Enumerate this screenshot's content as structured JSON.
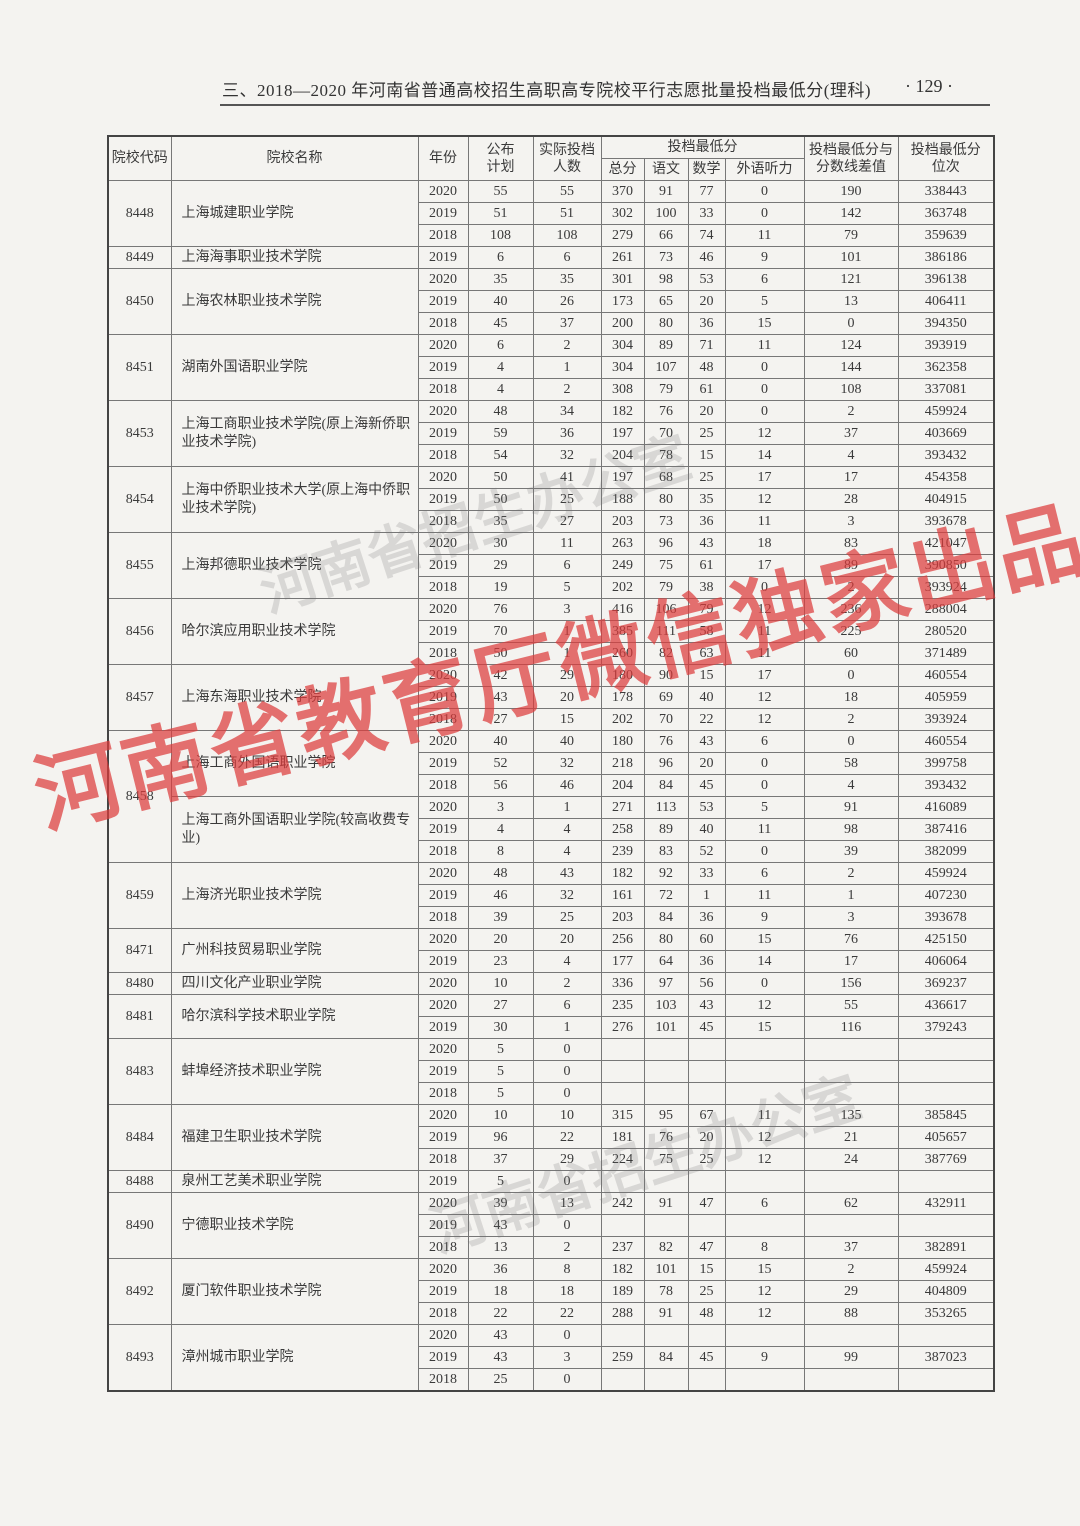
{
  "header": {
    "title": "三、2018—2020 年河南省普通高校招生高职高专院校平行志愿批量投档最低分(理科)",
    "page_number": "· 129 ·"
  },
  "table": {
    "headers": {
      "code": "院校代码",
      "name": "院校名称",
      "year": "年份",
      "plan": "公布计划",
      "actual": "实际投档人数",
      "min_score_group": "投档最低分",
      "total": "总分",
      "chinese": "语文",
      "math": "数学",
      "listening": "外语听力",
      "diff": "投档最低分与分数线差值",
      "rank": "投档最低分位次"
    },
    "schools": [
      {
        "code": "8448",
        "programs": [
          {
            "name": "上海城建职业学院",
            "rows": [
              [
                "2020",
                "55",
                "55",
                "370",
                "91",
                "77",
                "0",
                "190",
                "338443"
              ],
              [
                "2019",
                "51",
                "51",
                "302",
                "100",
                "33",
                "0",
                "142",
                "363748"
              ],
              [
                "2018",
                "108",
                "108",
                "279",
                "66",
                "74",
                "11",
                "79",
                "359639"
              ]
            ]
          }
        ]
      },
      {
        "code": "8449",
        "programs": [
          {
            "name": "上海海事职业技术学院",
            "rows": [
              [
                "2019",
                "6",
                "6",
                "261",
                "73",
                "46",
                "9",
                "101",
                "386186"
              ]
            ]
          }
        ]
      },
      {
        "code": "8450",
        "programs": [
          {
            "name": "上海农林职业技术学院",
            "rows": [
              [
                "2020",
                "35",
                "35",
                "301",
                "98",
                "53",
                "6",
                "121",
                "396138"
              ],
              [
                "2019",
                "40",
                "26",
                "173",
                "65",
                "20",
                "5",
                "13",
                "406411"
              ],
              [
                "2018",
                "45",
                "37",
                "200",
                "80",
                "36",
                "15",
                "0",
                "394350"
              ]
            ]
          }
        ]
      },
      {
        "code": "8451",
        "programs": [
          {
            "name": "湖南外国语职业学院",
            "rows": [
              [
                "2020",
                "6",
                "2",
                "304",
                "89",
                "71",
                "11",
                "124",
                "393919"
              ],
              [
                "2019",
                "4",
                "1",
                "304",
                "107",
                "48",
                "0",
                "144",
                "362358"
              ],
              [
                "2018",
                "4",
                "2",
                "308",
                "79",
                "61",
                "0",
                "108",
                "337081"
              ]
            ]
          }
        ]
      },
      {
        "code": "8453",
        "programs": [
          {
            "name": "上海工商职业技术学院(原上海新侨职业技术学院)",
            "rows": [
              [
                "2020",
                "48",
                "34",
                "182",
                "76",
                "20",
                "0",
                "2",
                "459924"
              ],
              [
                "2019",
                "59",
                "36",
                "197",
                "70",
                "25",
                "12",
                "37",
                "403669"
              ],
              [
                "2018",
                "54",
                "32",
                "204",
                "78",
                "15",
                "14",
                "4",
                "393432"
              ]
            ]
          }
        ]
      },
      {
        "code": "8454",
        "programs": [
          {
            "name": "上海中侨职业技术大学(原上海中侨职业技术学院)",
            "rows": [
              [
                "2020",
                "50",
                "41",
                "197",
                "68",
                "25",
                "17",
                "17",
                "454358"
              ],
              [
                "2019",
                "50",
                "25",
                "188",
                "80",
                "35",
                "12",
                "28",
                "404915"
              ],
              [
                "2018",
                "35",
                "27",
                "203",
                "73",
                "36",
                "11",
                "3",
                "393678"
              ]
            ]
          }
        ]
      },
      {
        "code": "8455",
        "programs": [
          {
            "name": "上海邦德职业技术学院",
            "rows": [
              [
                "2020",
                "30",
                "11",
                "263",
                "96",
                "43",
                "18",
                "83",
                "421047"
              ],
              [
                "2019",
                "29",
                "6",
                "249",
                "75",
                "61",
                "17",
                "89",
                "390850"
              ],
              [
                "2018",
                "19",
                "5",
                "202",
                "79",
                "38",
                "0",
                "2",
                "393924"
              ]
            ]
          }
        ]
      },
      {
        "code": "8456",
        "programs": [
          {
            "name": "哈尔滨应用职业技术学院",
            "rows": [
              [
                "2020",
                "76",
                "3",
                "416",
                "106",
                "79",
                "12",
                "236",
                "288004"
              ],
              [
                "2019",
                "70",
                "1",
                "385",
                "111",
                "58",
                "11",
                "225",
                "280520"
              ],
              [
                "2018",
                "50",
                "1",
                "260",
                "82",
                "63",
                "11",
                "60",
                "371489"
              ]
            ]
          }
        ]
      },
      {
        "code": "8457",
        "programs": [
          {
            "name": "上海东海职业技术学院",
            "rows": [
              [
                "2020",
                "42",
                "29",
                "180",
                "90",
                "15",
                "17",
                "0",
                "460554"
              ],
              [
                "2019",
                "43",
                "20",
                "178",
                "69",
                "40",
                "12",
                "18",
                "405959"
              ],
              [
                "2018",
                "27",
                "15",
                "202",
                "70",
                "22",
                "12",
                "2",
                "393924"
              ]
            ]
          }
        ]
      },
      {
        "code": "8458",
        "programs": [
          {
            "name": "上海工商外国语职业学院",
            "rows": [
              [
                "2020",
                "40",
                "40",
                "180",
                "76",
                "43",
                "6",
                "0",
                "460554"
              ],
              [
                "2019",
                "52",
                "32",
                "218",
                "96",
                "20",
                "0",
                "58",
                "399758"
              ],
              [
                "2018",
                "56",
                "46",
                "204",
                "84",
                "45",
                "0",
                "4",
                "393432"
              ]
            ]
          },
          {
            "name": "上海工商外国语职业学院(较高收费专业)",
            "rows": [
              [
                "2020",
                "3",
                "1",
                "271",
                "113",
                "53",
                "5",
                "91",
                "416089"
              ],
              [
                "2019",
                "4",
                "4",
                "258",
                "89",
                "40",
                "11",
                "98",
                "387416"
              ],
              [
                "2018",
                "8",
                "4",
                "239",
                "83",
                "52",
                "0",
                "39",
                "382099"
              ]
            ]
          }
        ]
      },
      {
        "code": "8459",
        "programs": [
          {
            "name": "上海济光职业技术学院",
            "rows": [
              [
                "2020",
                "48",
                "43",
                "182",
                "92",
                "33",
                "6",
                "2",
                "459924"
              ],
              [
                "2019",
                "46",
                "32",
                "161",
                "72",
                "1",
                "11",
                "1",
                "407230"
              ],
              [
                "2018",
                "39",
                "25",
                "203",
                "84",
                "36",
                "9",
                "3",
                "393678"
              ]
            ]
          }
        ]
      },
      {
        "code": "8471",
        "programs": [
          {
            "name": "广州科技贸易职业学院",
            "rows": [
              [
                "2020",
                "20",
                "20",
                "256",
                "80",
                "60",
                "15",
                "76",
                "425150"
              ],
              [
                "2019",
                "23",
                "4",
                "177",
                "64",
                "36",
                "14",
                "17",
                "406064"
              ]
            ]
          }
        ]
      },
      {
        "code": "8480",
        "programs": [
          {
            "name": "四川文化产业职业学院",
            "rows": [
              [
                "2020",
                "10",
                "2",
                "336",
                "97",
                "56",
                "0",
                "156",
                "369237"
              ]
            ]
          }
        ]
      },
      {
        "code": "8481",
        "programs": [
          {
            "name": "哈尔滨科学技术职业学院",
            "rows": [
              [
                "2020",
                "27",
                "6",
                "235",
                "103",
                "43",
                "12",
                "55",
                "436617"
              ],
              [
                "2019",
                "30",
                "1",
                "276",
                "101",
                "45",
                "15",
                "116",
                "379243"
              ]
            ]
          }
        ]
      },
      {
        "code": "8483",
        "programs": [
          {
            "name": "蚌埠经济技术职业学院",
            "rows": [
              [
                "2020",
                "5",
                "0",
                "",
                "",
                "",
                "",
                "",
                ""
              ],
              [
                "2019",
                "5",
                "0",
                "",
                "",
                "",
                "",
                "",
                ""
              ],
              [
                "2018",
                "5",
                "0",
                "",
                "",
                "",
                "",
                "",
                ""
              ]
            ]
          }
        ]
      },
      {
        "code": "8484",
        "programs": [
          {
            "name": "福建卫生职业技术学院",
            "rows": [
              [
                "2020",
                "10",
                "10",
                "315",
                "95",
                "67",
                "11",
                "135",
                "385845"
              ],
              [
                "2019",
                "96",
                "22",
                "181",
                "76",
                "20",
                "12",
                "21",
                "405657"
              ],
              [
                "2018",
                "37",
                "29",
                "224",
                "75",
                "25",
                "12",
                "24",
                "387769"
              ]
            ]
          }
        ]
      },
      {
        "code": "8488",
        "programs": [
          {
            "name": "泉州工艺美术职业学院",
            "rows": [
              [
                "2019",
                "5",
                "0",
                "",
                "",
                "",
                "",
                "",
                ""
              ]
            ]
          }
        ]
      },
      {
        "code": "8490",
        "programs": [
          {
            "name": "宁德职业技术学院",
            "rows": [
              [
                "2020",
                "39",
                "13",
                "242",
                "91",
                "47",
                "6",
                "62",
                "432911"
              ],
              [
                "2019",
                "43",
                "0",
                "",
                "",
                "",
                "",
                "",
                ""
              ],
              [
                "2018",
                "13",
                "2",
                "237",
                "82",
                "47",
                "8",
                "37",
                "382891"
              ]
            ]
          }
        ]
      },
      {
        "code": "8492",
        "programs": [
          {
            "name": "厦门软件职业技术学院",
            "rows": [
              [
                "2020",
                "36",
                "8",
                "182",
                "101",
                "15",
                "15",
                "2",
                "459924"
              ],
              [
                "2019",
                "18",
                "18",
                "189",
                "78",
                "25",
                "12",
                "29",
                "404809"
              ],
              [
                "2018",
                "22",
                "22",
                "288",
                "91",
                "48",
                "12",
                "88",
                "353265"
              ]
            ]
          }
        ]
      },
      {
        "code": "8493",
        "programs": [
          {
            "name": "漳州城市职业学院",
            "rows": [
              [
                "2020",
                "43",
                "0",
                "",
                "",
                "",
                "",
                "",
                ""
              ],
              [
                "2019",
                "43",
                "3",
                "259",
                "84",
                "45",
                "9",
                "99",
                "387023"
              ],
              [
                "2018",
                "25",
                "0",
                "",
                "",
                "",
                "",
                "",
                ""
              ]
            ]
          }
        ]
      }
    ]
  },
  "watermarks": {
    "red": "河南省教育厅微信独家出品",
    "gray": "河南省招生办公室"
  },
  "colors": {
    "watermark_red": "#dc3c3c",
    "paper": "#f4f3f0"
  }
}
